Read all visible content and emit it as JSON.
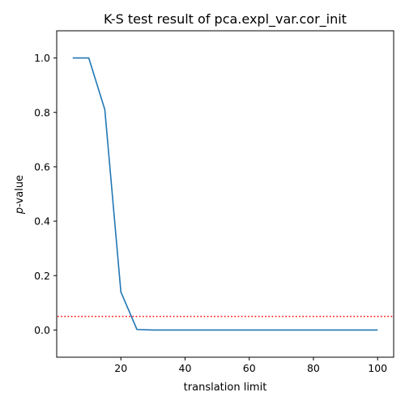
{
  "chart_data": {
    "type": "line",
    "title": "K-S test result of pca.expl_var.cor_init",
    "xlabel": "translation limit",
    "ylabel_italic": "p",
    "ylabel_rest": "-value",
    "xlim": [
      0,
      105
    ],
    "ylim": [
      -0.1,
      1.1
    ],
    "xticks": [
      20,
      40,
      60,
      80,
      100
    ],
    "yticks": [
      0.0,
      0.2,
      0.4,
      0.6,
      0.8,
      1.0
    ],
    "xtick_labels": [
      "20",
      "40",
      "60",
      "80",
      "100"
    ],
    "ytick_labels": [
      "0.0",
      "0.2",
      "0.4",
      "0.6",
      "0.8",
      "1.0"
    ],
    "grid": false,
    "series": [
      {
        "color": "#1f77b4",
        "x": [
          5,
          10,
          15,
          20,
          25,
          30,
          35,
          40,
          45,
          50,
          55,
          60,
          65,
          70,
          75,
          80,
          85,
          90,
          95,
          100
        ],
        "y": [
          1.0,
          1.0,
          0.81,
          0.14,
          0.002,
          0.0,
          0.0,
          0.0,
          0.0,
          0.0,
          0.0,
          0.0,
          0.0,
          0.0,
          0.0,
          0.0,
          0.0,
          0.0,
          0.0,
          0.0
        ]
      }
    ],
    "reference_line": {
      "y": 0.05,
      "color": "#ff0000",
      "style": "dotted"
    }
  }
}
